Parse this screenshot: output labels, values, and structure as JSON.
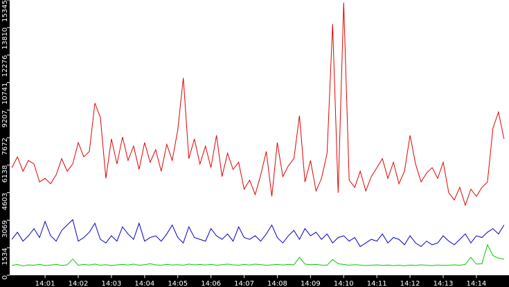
{
  "chart_data": {
    "type": "line",
    "x": [
      0,
      10,
      20,
      30,
      40,
      50,
      60,
      70,
      80,
      90,
      100,
      110,
      120,
      130,
      140,
      150,
      160,
      170,
      180,
      190,
      200,
      210,
      220,
      230,
      240,
      250,
      260,
      270,
      280,
      290,
      300,
      310,
      320,
      330,
      340,
      350,
      360,
      370,
      380,
      390,
      400,
      410,
      420,
      430,
      440,
      450,
      460,
      470,
      480,
      490,
      500,
      510,
      520,
      530,
      540,
      550,
      560,
      570,
      580,
      590,
      600,
      610,
      620,
      630,
      640,
      650,
      660,
      670,
      680,
      690,
      700,
      710,
      720,
      730,
      740,
      750,
      760,
      770,
      780,
      790,
      800,
      810,
      820,
      830,
      840,
      850,
      860,
      870,
      880,
      890
    ],
    "xlim": [
      -4,
      899
    ],
    "xticks": [
      {
        "value": 60,
        "label": "14:01"
      },
      {
        "value": 120,
        "label": "14:02"
      },
      {
        "value": 180,
        "label": "14:03"
      },
      {
        "value": 240,
        "label": "14:04"
      },
      {
        "value": 300,
        "label": "14:05"
      },
      {
        "value": 360,
        "label": "14:06"
      },
      {
        "value": 420,
        "label": "14:07"
      },
      {
        "value": 480,
        "label": "14:08"
      },
      {
        "value": 540,
        "label": "14:09"
      },
      {
        "value": 600,
        "label": "14:10"
      },
      {
        "value": 660,
        "label": "14:11"
      },
      {
        "value": 720,
        "label": "14:12"
      },
      {
        "value": 780,
        "label": "14:13"
      },
      {
        "value": 840,
        "label": "14:14"
      }
    ],
    "ylim": [
      0,
      15345
    ],
    "yticks": [
      0,
      1534,
      3069,
      4603,
      6138,
      7672,
      9207,
      10741,
      12276,
      13810,
      15345
    ],
    "series": [
      {
        "color": "#e00000",
        "values": [
          6000,
          6600,
          5800,
          6400,
          6200,
          5200,
          5400,
          5100,
          5600,
          6500,
          5800,
          6200,
          7400,
          6600,
          6900,
          9600,
          8800,
          5400,
          7600,
          6200,
          7700,
          6400,
          7200,
          5900,
          7400,
          6300,
          7000,
          5800,
          7300,
          6400,
          8100,
          11000,
          6500,
          7600,
          6200,
          7200,
          6000,
          7800,
          5500,
          6800,
          5900,
          6300,
          4800,
          5300,
          4500,
          5600,
          6900,
          4400,
          7400,
          5500,
          6100,
          6500,
          8900,
          5200,
          6400,
          4700,
          5400,
          6800,
          14000,
          4600,
          15200,
          5300,
          4900,
          5800,
          4700,
          5500,
          6000,
          6500,
          5400,
          6300,
          5100,
          5800,
          7800,
          6200,
          5200,
          5700,
          6000,
          5400,
          6300,
          4600,
          4200,
          4900,
          3900,
          4800,
          4400,
          4900,
          5200,
          8200,
          9100,
          7600
        ]
      },
      {
        "color": "#0000c0",
        "values": [
          2000,
          2400,
          1900,
          2200,
          2600,
          2100,
          3000,
          2200,
          1900,
          2500,
          2800,
          3100,
          1900,
          2100,
          2400,
          2900,
          2000,
          1800,
          2200,
          1900,
          2700,
          2300,
          2000,
          2900,
          1900,
          2100,
          2200,
          1900,
          2300,
          2800,
          2100,
          1800,
          2700,
          2100,
          2000,
          1900,
          2600,
          2200,
          2000,
          2300,
          1900,
          2700,
          2100,
          2000,
          2200,
          1900,
          2300,
          2800,
          2100,
          1800,
          2200,
          2500,
          2000,
          2600,
          2200,
          2400,
          2000,
          2300,
          1800,
          2100,
          2200,
          1900,
          2100,
          1600,
          1800,
          2000,
          1900,
          2300,
          1800,
          2100,
          2000,
          1700,
          2200,
          1800,
          1600,
          1900,
          1700,
          1800,
          2200,
          1900,
          1700,
          2000,
          2300,
          1800,
          2200,
          2100,
          2400,
          2600,
          2300,
          2800
        ]
      },
      {
        "color": "#00c800",
        "values": [
          550,
          600,
          520,
          580,
          560,
          610,
          540,
          570,
          600,
          550,
          580,
          900,
          560,
          600,
          570,
          620,
          560,
          590,
          540,
          580,
          600,
          570,
          620,
          560,
          590,
          640,
          580,
          560,
          610,
          570,
          590,
          560,
          620,
          580,
          600,
          570,
          610,
          560,
          590,
          620,
          580,
          560,
          600,
          570,
          620,
          590,
          560,
          580,
          600,
          570,
          610,
          580,
          1000,
          620,
          590,
          600,
          570,
          560,
          880,
          640,
          600,
          560,
          590,
          570,
          540,
          560,
          580,
          550,
          570,
          540,
          560,
          530,
          570,
          550,
          580,
          560,
          540,
          570,
          550,
          560,
          580,
          560,
          600,
          1000,
          620,
          640,
          1700,
          1100,
          950,
          900
        ]
      }
    ]
  }
}
